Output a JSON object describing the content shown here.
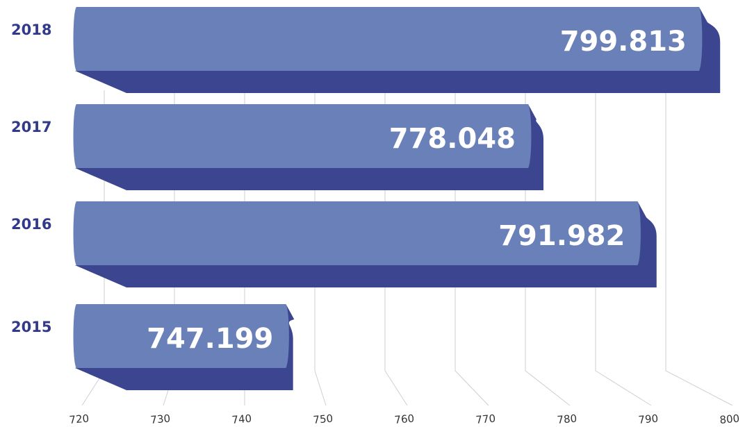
{
  "chart_data": {
    "type": "bar",
    "orientation": "horizontal",
    "categories": [
      "2018",
      "2017",
      "2016",
      "2015"
    ],
    "values": [
      799.813,
      778.048,
      791.982,
      747.199
    ],
    "value_labels": [
      "799.813",
      "778.048",
      "791.982",
      "747.199"
    ],
    "x_ticks": [
      "720",
      "730",
      "740",
      "750",
      "760",
      "770",
      "780",
      "790",
      "800"
    ],
    "xlim": [
      720,
      800
    ],
    "grid": true,
    "style": "3d-ribbon",
    "colors": {
      "bar_front": "#6a80b8",
      "bar_shadow": "#3c4590",
      "label": "#33398a",
      "value_text": "#ffffff"
    }
  }
}
